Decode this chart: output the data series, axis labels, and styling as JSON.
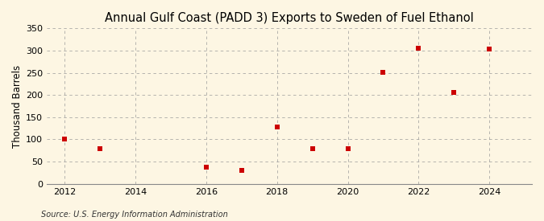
{
  "title": "Annual Gulf Coast (PADD 3) Exports to Sweden of Fuel Ethanol",
  "ylabel": "Thousand Barrels",
  "source": "Source: U.S. Energy Information Administration",
  "years": [
    2012,
    2013,
    2016,
    2017,
    2018,
    2019,
    2020,
    2021,
    2022,
    2023,
    2024
  ],
  "values": [
    100,
    79,
    37,
    31,
    127,
    79,
    79,
    251,
    306,
    205,
    303
  ],
  "marker_color": "#cc0000",
  "marker": "s",
  "marker_size": 4,
  "background_color": "#fdf6e3",
  "grid_color": "#999999",
  "xlim": [
    2011.5,
    2025.2
  ],
  "ylim": [
    0,
    350
  ],
  "xticks": [
    2012,
    2014,
    2016,
    2018,
    2020,
    2022,
    2024
  ],
  "yticks": [
    0,
    50,
    100,
    150,
    200,
    250,
    300,
    350
  ],
  "title_fontsize": 10.5,
  "label_fontsize": 8.5,
  "tick_fontsize": 8,
  "source_fontsize": 7
}
